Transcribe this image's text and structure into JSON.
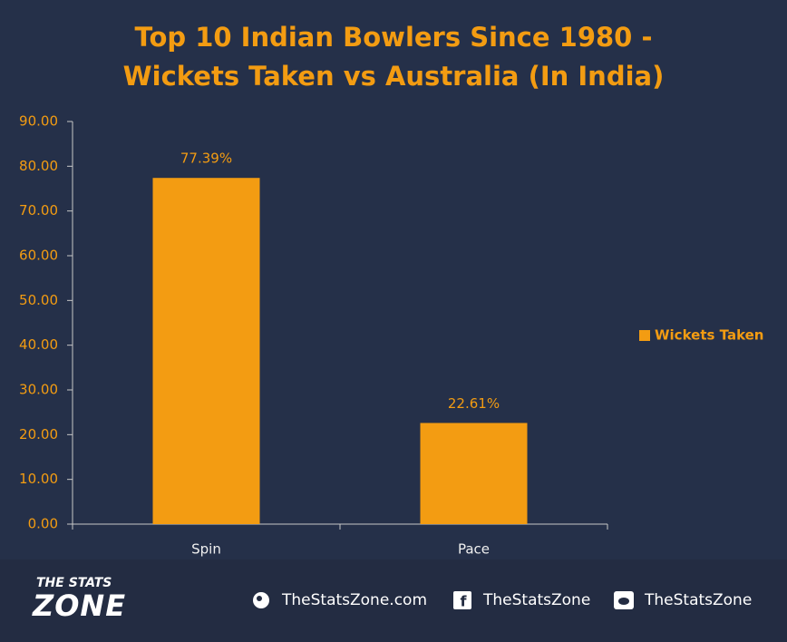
{
  "chart_data": {
    "type": "bar",
    "title": "Top 10 Indian Bowlers Since 1980 - Wickets Taken vs Australia (In India)",
    "categories": [
      "Spin",
      "Pace"
    ],
    "series": [
      {
        "name": "Wickets Taken",
        "color": "#f39c12",
        "values": [
          77.39,
          22.61
        ],
        "value_labels": [
          "77.39%",
          "22.61%"
        ]
      }
    ],
    "ylim": [
      0,
      90
    ],
    "yticks": [
      {
        "value": 0,
        "label": "0.00"
      },
      {
        "value": 10,
        "label": "10.00"
      },
      {
        "value": 20,
        "label": "20.00"
      },
      {
        "value": 30,
        "label": "30.00"
      },
      {
        "value": 40,
        "label": "40.00"
      },
      {
        "value": 50,
        "label": "50.00"
      },
      {
        "value": 60,
        "label": "60.00"
      },
      {
        "value": 70,
        "label": "70.00"
      },
      {
        "value": 80,
        "label": "80.00"
      },
      {
        "value": 90,
        "label": "90.00"
      }
    ],
    "grid": false,
    "legend": "right"
  },
  "footer": {
    "logo_top": "THE STATS",
    "logo_bottom": "ZONE",
    "website": "TheStatsZone.com",
    "facebook": "TheStatsZone",
    "twitter": "TheStatsZone"
  }
}
